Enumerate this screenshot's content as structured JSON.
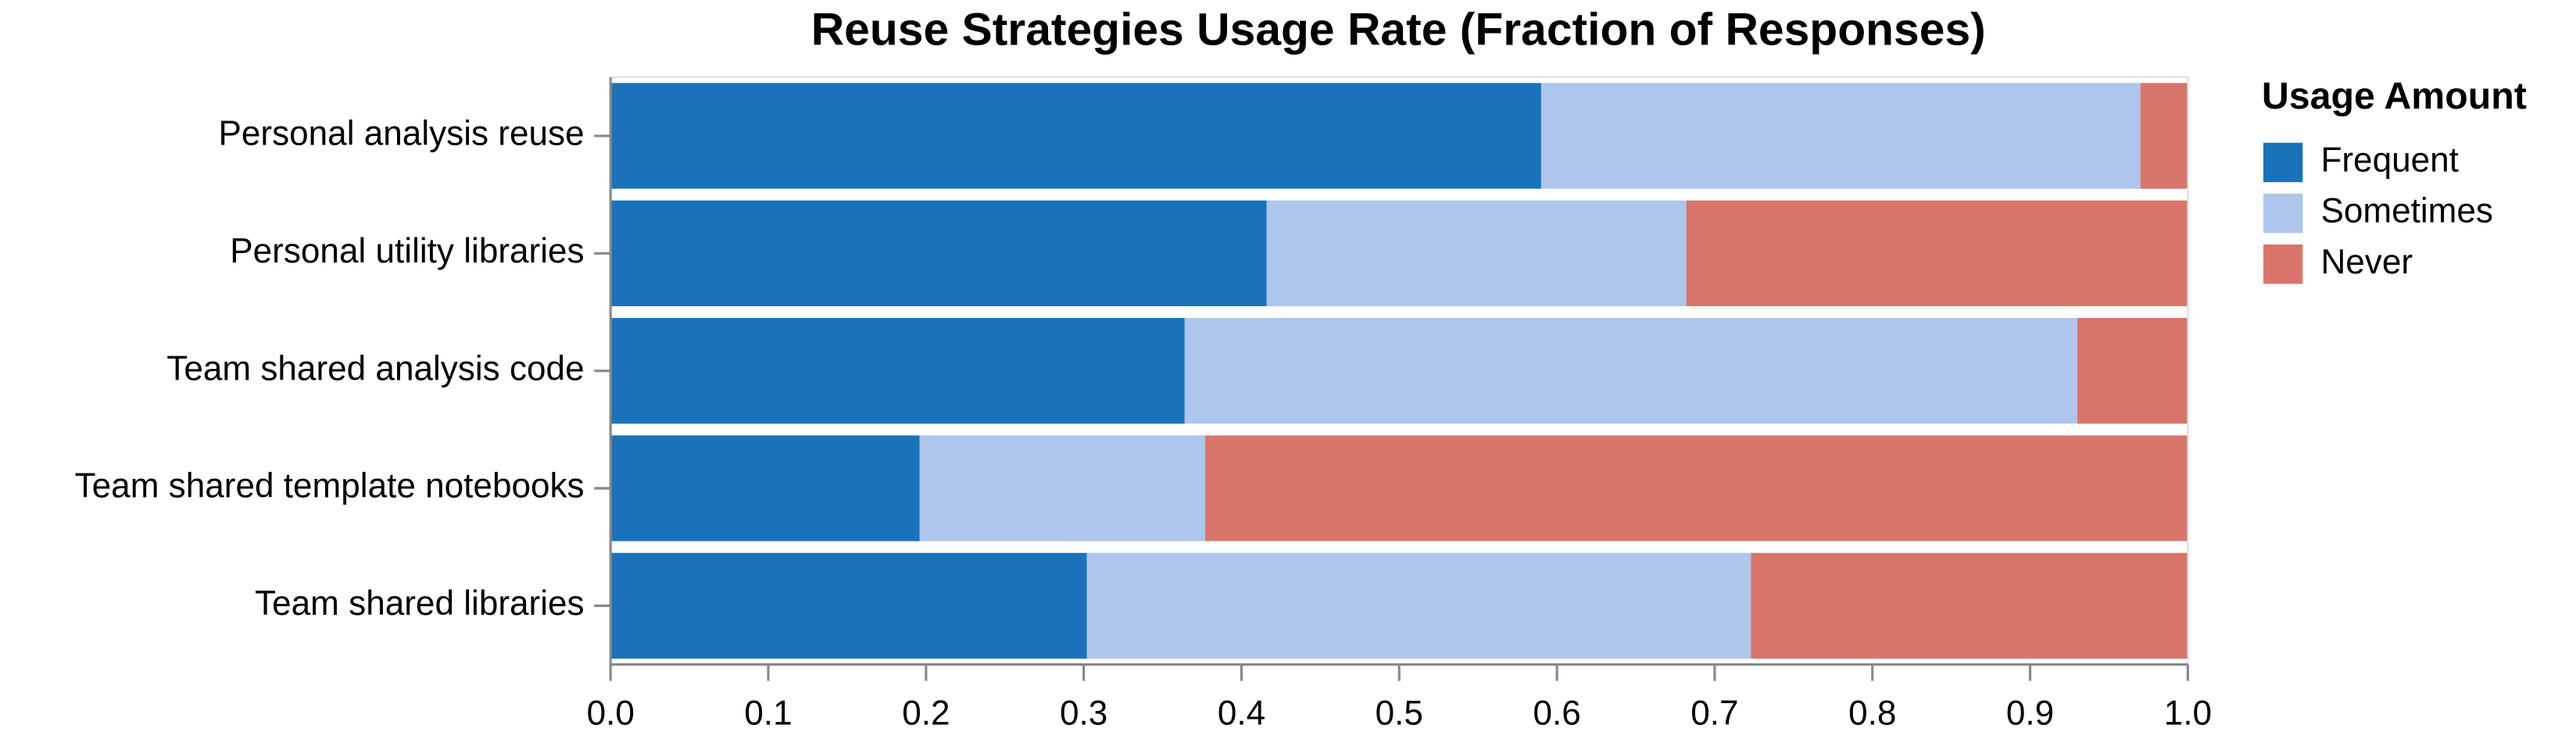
{
  "chart_data": {
    "type": "stacked-bar-horizontal",
    "title": "Reuse Strategies Usage Rate (Fraction of Responses)",
    "legend_title": "Usage Amount",
    "legend_position": "right",
    "categories": [
      "Personal analysis reuse",
      "Personal utility libraries",
      "Team shared analysis code",
      "Team shared template notebooks",
      "Team shared libraries"
    ],
    "series": [
      {
        "name": "Frequent",
        "color": "#1a72bb",
        "values": [
          0.59,
          0.416,
          0.364,
          0.196,
          0.302
        ]
      },
      {
        "name": "Sometimes",
        "color": "#aec5ec",
        "values": [
          0.38,
          0.266,
          0.566,
          0.181,
          0.421
        ]
      },
      {
        "name": "Never",
        "color": "#d8756b",
        "values": [
          0.03,
          0.318,
          0.07,
          0.623,
          0.277
        ]
      }
    ],
    "xlim": [
      0,
      1
    ],
    "xticks": [
      {
        "value": 0,
        "label": "0.0"
      },
      0.1,
      0.2,
      0.3,
      0.4,
      0.5,
      0.6,
      0.7,
      0.8,
      0.9,
      {
        "value": 1,
        "label": "1.0"
      }
    ]
  }
}
